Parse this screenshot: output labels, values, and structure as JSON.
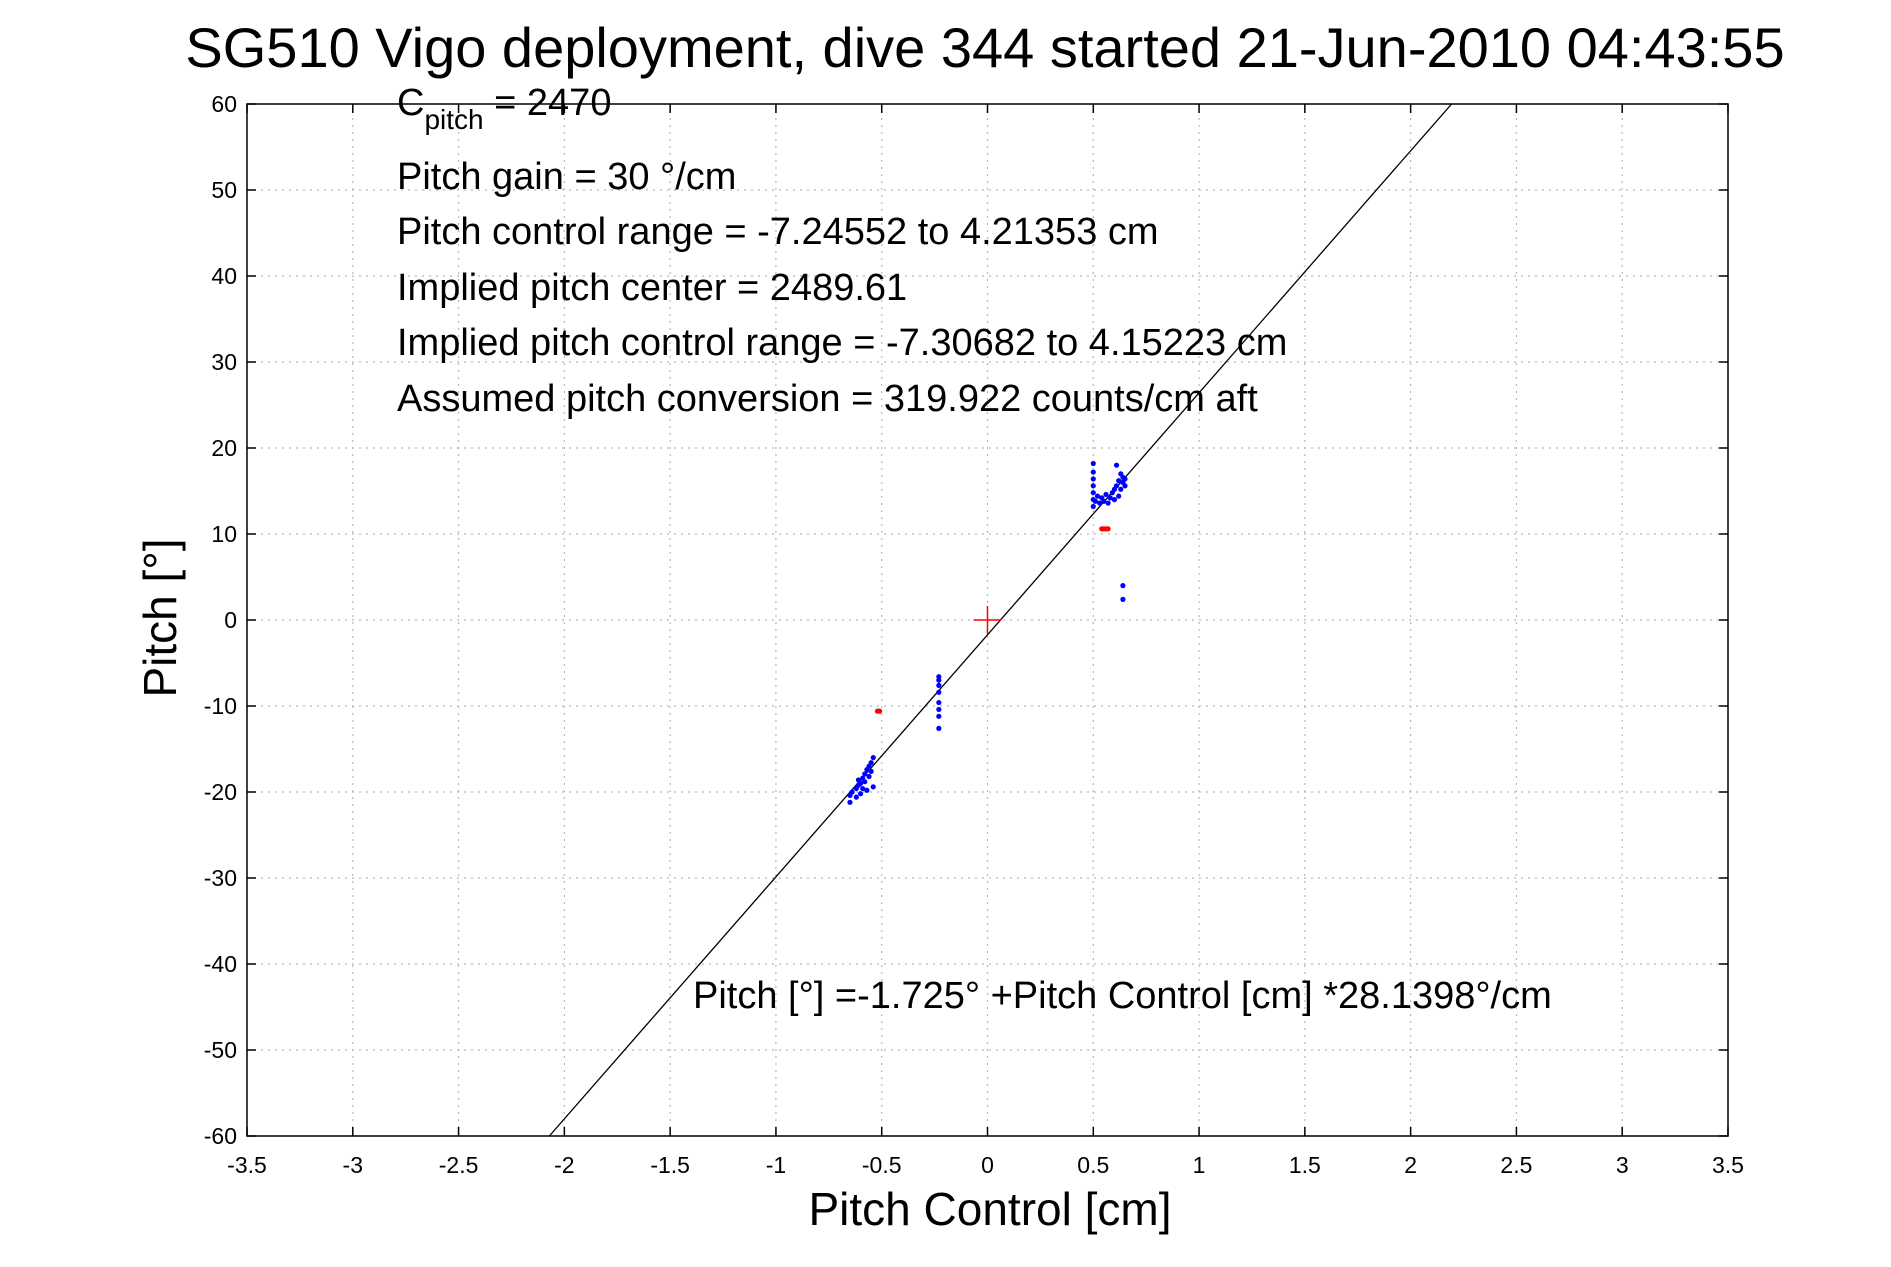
{
  "chart_data": {
    "type": "scatter",
    "title": "SG510 Vigo deployment, dive 344 started 21-Jun-2010 04:43:55",
    "xlabel": "Pitch Control [cm]",
    "ylabel": "Pitch [°]",
    "xlim": [
      -3.5,
      3.5
    ],
    "ylim": [
      -60,
      60
    ],
    "xticks": [
      -3.5,
      -3,
      -2.5,
      -2,
      -1.5,
      -1,
      -0.5,
      0,
      0.5,
      1,
      1.5,
      2,
      2.5,
      3,
      3.5
    ],
    "yticks": [
      -60,
      -50,
      -40,
      -30,
      -20,
      -10,
      0,
      10,
      20,
      30,
      40,
      50,
      60
    ],
    "xtick_labels": [
      "-3.5",
      "-3",
      "-2.5",
      "-2",
      "-1.5",
      "-1",
      "-0.5",
      "0",
      "0.5",
      "1",
      "1.5",
      "2",
      "2.5",
      "3",
      "3.5"
    ],
    "ytick_labels": [
      "-60",
      "-50",
      "-40",
      "-30",
      "-20",
      "-10",
      "0",
      "10",
      "20",
      "30",
      "40",
      "50",
      "60"
    ],
    "grid": true,
    "annotations": {
      "c_pitch_label": "C",
      "c_pitch_subscript": "pitch",
      "c_pitch_value": " = 2470",
      "lines": [
        "Pitch gain = 30 °/cm",
        "Pitch control range = -7.24552 to 4.21353 cm",
        "Implied pitch center = 2489.61",
        "Implied pitch control range = -7.30682 to 4.15223 cm",
        "Assumed pitch conversion = 319.922 counts/cm aft"
      ],
      "fit_equation": "Pitch [°] =-1.725° +Pitch Control [cm] *28.1398°/cm"
    },
    "fit_line": {
      "intercept": -1.725,
      "slope": 28.1398,
      "color": "#000000"
    },
    "center_marker": {
      "x": 0,
      "y": 0,
      "color": "#ff0000",
      "shape": "plus"
    },
    "series": [
      {
        "color": "#0000ff",
        "points": [
          [
            -0.65,
            -21.2
          ],
          [
            -0.65,
            -20.4
          ],
          [
            -0.64,
            -20.0
          ],
          [
            -0.62,
            -20.6
          ],
          [
            -0.62,
            -19.6
          ],
          [
            -0.61,
            -19.2
          ],
          [
            -0.61,
            -18.6
          ],
          [
            -0.6,
            -20.2
          ],
          [
            -0.6,
            -19.0
          ],
          [
            -0.59,
            -18.4
          ],
          [
            -0.59,
            -19.6
          ],
          [
            -0.58,
            -17.9
          ],
          [
            -0.58,
            -18.8
          ],
          [
            -0.57,
            -17.4
          ],
          [
            -0.57,
            -19.8
          ],
          [
            -0.56,
            -17.0
          ],
          [
            -0.56,
            -18.2
          ],
          [
            -0.55,
            -16.6
          ],
          [
            -0.55,
            -17.6
          ],
          [
            -0.54,
            -16.0
          ],
          [
            -0.54,
            -19.4
          ],
          [
            -0.23,
            -6.6
          ],
          [
            -0.23,
            -7.0
          ],
          [
            -0.23,
            -7.6
          ],
          [
            -0.23,
            -8.4
          ],
          [
            -0.23,
            -9.6
          ],
          [
            -0.23,
            -10.4
          ],
          [
            -0.23,
            -11.2
          ],
          [
            -0.23,
            -12.6
          ],
          [
            0.5,
            18.2
          ],
          [
            0.5,
            17.2
          ],
          [
            0.5,
            16.4
          ],
          [
            0.5,
            15.6
          ],
          [
            0.5,
            14.8
          ],
          [
            0.5,
            14.0
          ],
          [
            0.5,
            13.2
          ],
          [
            0.51,
            13.8
          ],
          [
            0.52,
            14.4
          ],
          [
            0.53,
            13.6
          ],
          [
            0.54,
            14.2
          ],
          [
            0.55,
            13.8
          ],
          [
            0.56,
            14.6
          ],
          [
            0.57,
            13.6
          ],
          [
            0.58,
            14.2
          ],
          [
            0.59,
            14.8
          ],
          [
            0.6,
            14.0
          ],
          [
            0.6,
            15.2
          ],
          [
            0.61,
            18.0
          ],
          [
            0.61,
            15.6
          ],
          [
            0.62,
            14.4
          ],
          [
            0.62,
            16.2
          ],
          [
            0.63,
            15.2
          ],
          [
            0.63,
            17.0
          ],
          [
            0.64,
            16.0
          ],
          [
            0.64,
            16.6
          ],
          [
            0.65,
            15.6
          ],
          [
            0.65,
            16.4
          ],
          [
            0.64,
            4.0
          ],
          [
            0.64,
            2.4
          ]
        ]
      },
      {
        "color": "#ff0000",
        "points": [
          [
            -0.52,
            -10.6
          ],
          [
            -0.51,
            -10.6
          ],
          [
            0.54,
            10.6
          ],
          [
            0.55,
            10.6
          ],
          [
            0.56,
            10.6
          ],
          [
            0.57,
            10.6
          ]
        ]
      }
    ]
  }
}
